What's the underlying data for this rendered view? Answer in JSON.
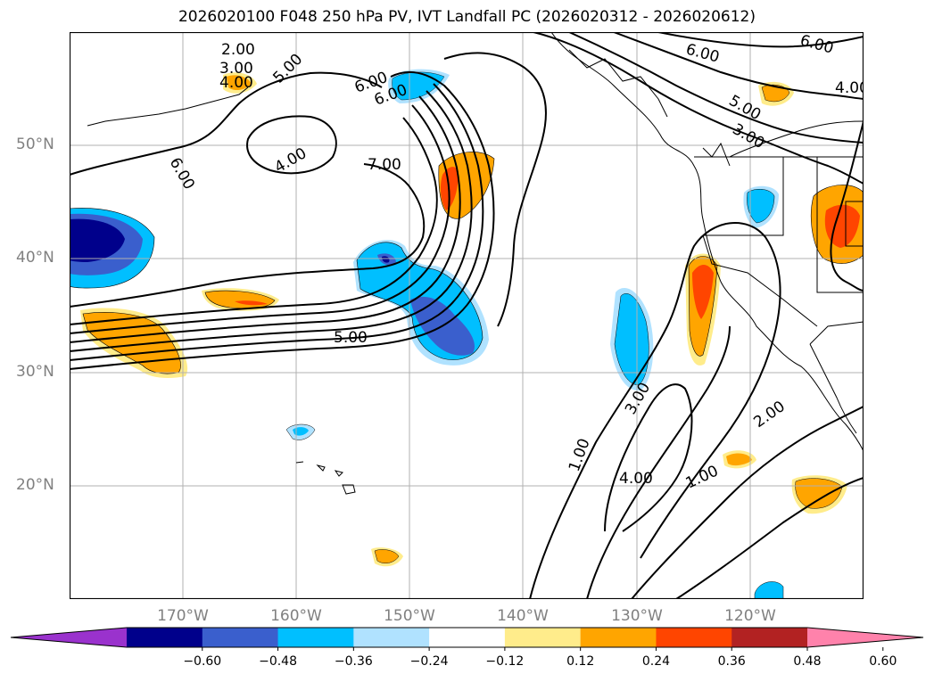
{
  "title": "2026020100 F048 250 hPa PV, IVT Landfall PC (2026020312 - 2026020612)",
  "lat_labels": [
    {
      "text": "50°N",
      "value": 50
    },
    {
      "text": "40°N",
      "value": 40
    },
    {
      "text": "30°N",
      "value": 30
    },
    {
      "text": "20°N",
      "value": 20
    }
  ],
  "lon_labels": [
    {
      "text": "170°W",
      "value": -170
    },
    {
      "text": "160°W",
      "value": -160
    },
    {
      "text": "150°W",
      "value": -150
    },
    {
      "text": "140°W",
      "value": -140
    },
    {
      "text": "130°W",
      "value": -130
    },
    {
      "text": "120°W",
      "value": -120
    }
  ],
  "contour_labels": [
    "2.00",
    "3.00",
    "4.00",
    "5.00",
    "6.00",
    "6.00",
    "4.00",
    "6.00",
    "7.00",
    "5.00",
    "6.00",
    "5.00",
    "3.00",
    "6.00",
    "4.00",
    "3.00",
    "1.00",
    "4.00",
    "1.00",
    "2.00"
  ],
  "colorbar": {
    "ticks": [
      "−0.60",
      "−0.48",
      "−0.36",
      "−0.24",
      "−0.12",
      "0.12",
      "0.24",
      "0.36",
      "0.48",
      "0.60"
    ],
    "colors": [
      "#9a32cd",
      "#00008b",
      "#3a5fcd",
      "#00bfff",
      "#b0e2ff",
      "#ffffff",
      "#ffec8b",
      "#ffa500",
      "#ff4500",
      "#b22222",
      "#ff82ab"
    ]
  }
}
